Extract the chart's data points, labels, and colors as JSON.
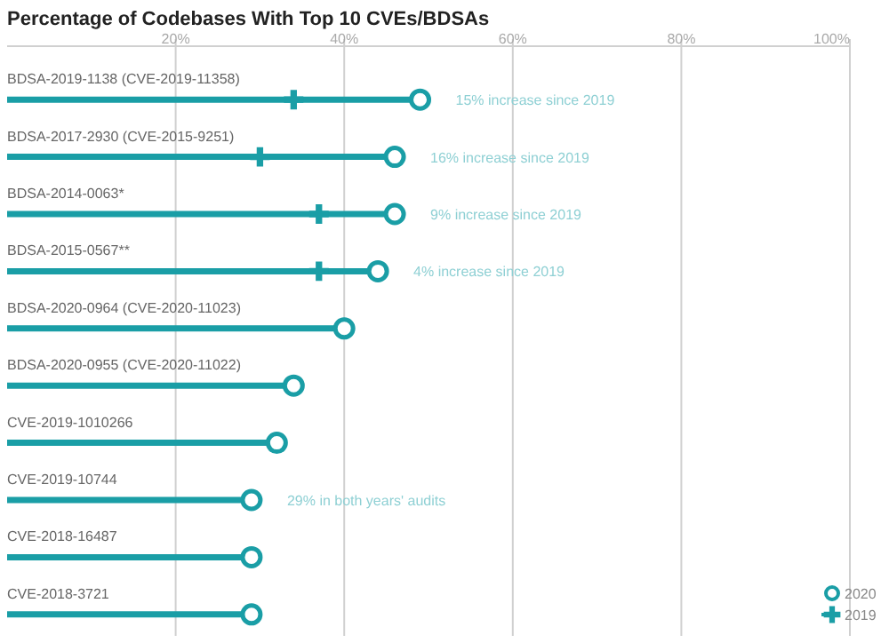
{
  "chart_data": {
    "type": "lollipop",
    "title": "Percentage of Codebases With Top 10 CVEs/BDSAs",
    "orientation": "horizontal",
    "categories": [
      "BDSA-2019-1138 (CVE-2019-11358)",
      "BDSA-2017-2930 (CVE-2015-9251)",
      "BDSA-2014-0063*",
      "BDSA-2015-0567**",
      "BDSA-2020-0964 (CVE-2020-11023)",
      "BDSA-2020-0955 (CVE-2020-11022)",
      "CVE-2019-1010266",
      "CVE-2019-10744",
      "CVE-2018-16487",
      "CVE-2018-3721"
    ],
    "series": [
      {
        "name": "2020",
        "type": "lollipop",
        "color": "#1a9ea6",
        "marker": "circle",
        "values": [
          49,
          46,
          46,
          44,
          40,
          34,
          32,
          29,
          29,
          29
        ]
      },
      {
        "name": "2019",
        "type": "scatter",
        "color": "#1a9ea6",
        "marker": "cross",
        "values": [
          34,
          30,
          37,
          37,
          null,
          null,
          null,
          null,
          null,
          null
        ]
      }
    ],
    "xlim": [
      0,
      100
    ],
    "xticks": [
      {
        "value": 20,
        "label": "20%"
      },
      {
        "value": 40,
        "label": "40%"
      },
      {
        "value": 60,
        "label": "60%"
      },
      {
        "value": 80,
        "label": "80%"
      },
      {
        "value": 100,
        "label": "100%"
      }
    ],
    "grid": "x",
    "legend": "bottom right",
    "annotations": [
      {
        "text": "15% increase since 2019",
        "x": 49,
        "y": "BDSA-2019-1138 (CVE-2019-11358)"
      },
      {
        "text": "16% increase since 2019",
        "x": 46,
        "y": "BDSA-2017-2930 (CVE-2015-9251)"
      },
      {
        "text": "9% increase since 2019",
        "x": 46,
        "y": "BDSA-2014-0063*"
      },
      {
        "text": "4% increase since 2019",
        "x": 44,
        "y": "BDSA-2015-0567**"
      },
      {
        "text": "29% in both years' audits",
        "x": 29,
        "y": "CVE-2019-10744"
      }
    ]
  }
}
